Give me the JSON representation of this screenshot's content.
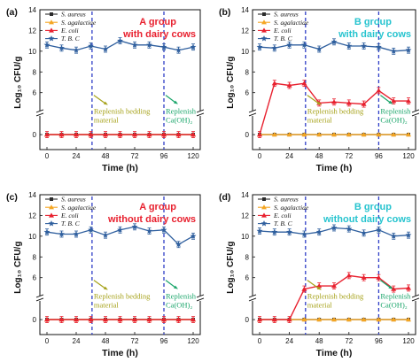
{
  "colors": {
    "aureus": "#2b2b2b",
    "agalactiae": "#f5a623",
    "coli": "#e8212f",
    "tbc": "#2f5f9e",
    "vline": "#2f3ec7",
    "group_red": "#e8212f",
    "group_cyan": "#27c4cf",
    "ann_olive": "#a6a21a",
    "ann_green": "#1aa56a"
  },
  "shared": {
    "xlabel": "Time (h)",
    "ylabel": "Log₁₀ CFU/g",
    "xticks": [
      0,
      24,
      48,
      72,
      96,
      120
    ],
    "yticks": [
      0,
      6,
      8,
      10,
      12,
      14
    ],
    "legend": [
      "S. aureus",
      "S. agalactiae",
      "E. coli",
      "T. B. C"
    ],
    "replenish_bedding": "Replenish bedding material",
    "replenish_caoh2": "Replenish Ca(OH)₂",
    "vlines_x": [
      37,
      96
    ]
  },
  "chart_data": [
    {
      "type": "line",
      "panel_label": "(a)",
      "group_label_line1": "A group",
      "group_label_line2": "with dairy cows",
      "group_color": "red",
      "x": [
        0,
        12,
        24,
        36,
        48,
        60,
        72,
        84,
        96,
        108,
        120
      ],
      "ylim": [
        0,
        14
      ],
      "y_axis_break": true,
      "series": [
        {
          "name": "S. aureus",
          "values": [
            0,
            0,
            0,
            0,
            0,
            0,
            0,
            0,
            0,
            0,
            0
          ]
        },
        {
          "name": "S. agalactiae",
          "values": [
            0,
            0,
            0,
            0,
            0,
            0,
            0,
            0,
            0,
            0,
            0
          ]
        },
        {
          "name": "E. coli",
          "values": [
            0,
            0,
            0,
            0,
            0,
            0,
            0,
            0,
            0,
            0,
            0
          ]
        },
        {
          "name": "T. B. C",
          "values": [
            10.6,
            10.3,
            10.1,
            10.5,
            10.2,
            11.0,
            10.6,
            10.6,
            10.4,
            10.1,
            10.4
          ]
        }
      ]
    },
    {
      "type": "line",
      "panel_label": "(b)",
      "group_label_line1": "B group",
      "group_label_line2": "with dairy cows",
      "group_color": "cyan",
      "x": [
        0,
        12,
        24,
        36,
        48,
        60,
        72,
        84,
        96,
        108,
        120
      ],
      "ylim": [
        0,
        14
      ],
      "y_axis_break": true,
      "series": [
        {
          "name": "S. aureus",
          "values": [
            0,
            0,
            0,
            0,
            0,
            0,
            0,
            0,
            0,
            0,
            0
          ]
        },
        {
          "name": "S. agalactiae",
          "values": [
            0,
            0,
            0,
            0,
            0,
            0,
            0,
            0,
            0,
            0,
            0
          ]
        },
        {
          "name": "E. coli",
          "values": [
            0,
            6.9,
            6.7,
            6.9,
            5.0,
            5.1,
            5.0,
            4.9,
            6.2,
            5.2,
            5.2
          ]
        },
        {
          "name": "T. B. C",
          "values": [
            10.4,
            10.3,
            10.6,
            10.6,
            10.2,
            10.9,
            10.5,
            10.5,
            10.4,
            10.0,
            10.1
          ]
        }
      ]
    },
    {
      "type": "line",
      "panel_label": "(c)",
      "group_label_line1": "A group",
      "group_label_line2": "without dairy cows",
      "group_color": "red",
      "x": [
        0,
        12,
        24,
        36,
        48,
        60,
        72,
        84,
        96,
        108,
        120
      ],
      "ylim": [
        0,
        14
      ],
      "y_axis_break": true,
      "series": [
        {
          "name": "S. aureus",
          "values": [
            0,
            0,
            0,
            0,
            0,
            0,
            0,
            0,
            0,
            0,
            0
          ]
        },
        {
          "name": "S. agalactiae",
          "values": [
            0,
            0,
            0,
            0,
            0,
            0,
            0,
            0,
            0,
            0,
            0
          ]
        },
        {
          "name": "E. coli",
          "values": [
            0,
            0,
            0,
            0,
            0,
            0,
            0,
            0,
            0,
            0,
            0
          ]
        },
        {
          "name": "T. B. C",
          "values": [
            10.4,
            10.2,
            10.2,
            10.6,
            10.1,
            10.6,
            10.9,
            10.5,
            10.6,
            9.2,
            10.0
          ]
        }
      ]
    },
    {
      "type": "line",
      "panel_label": "(d)",
      "group_label_line1": "B group",
      "group_label_line2": "without dairy cows",
      "group_color": "cyan",
      "x": [
        0,
        12,
        24,
        36,
        48,
        60,
        72,
        84,
        96,
        108,
        120
      ],
      "ylim": [
        0,
        14
      ],
      "y_axis_break": true,
      "series": [
        {
          "name": "S. aureus",
          "values": [
            0,
            0,
            0,
            0,
            0,
            0,
            0,
            0,
            0,
            0,
            0
          ]
        },
        {
          "name": "S. agalactiae",
          "values": [
            0,
            0,
            0,
            0,
            0,
            0,
            0,
            0,
            0,
            0,
            0
          ]
        },
        {
          "name": "E. coli",
          "values": [
            0,
            0,
            0,
            4.9,
            5.2,
            5.2,
            6.2,
            6.0,
            6.0,
            4.9,
            5.0
          ]
        },
        {
          "name": "T. B. C",
          "values": [
            10.5,
            10.4,
            10.4,
            10.2,
            10.4,
            10.8,
            10.7,
            10.3,
            10.6,
            10.0,
            10.1
          ]
        }
      ]
    }
  ]
}
